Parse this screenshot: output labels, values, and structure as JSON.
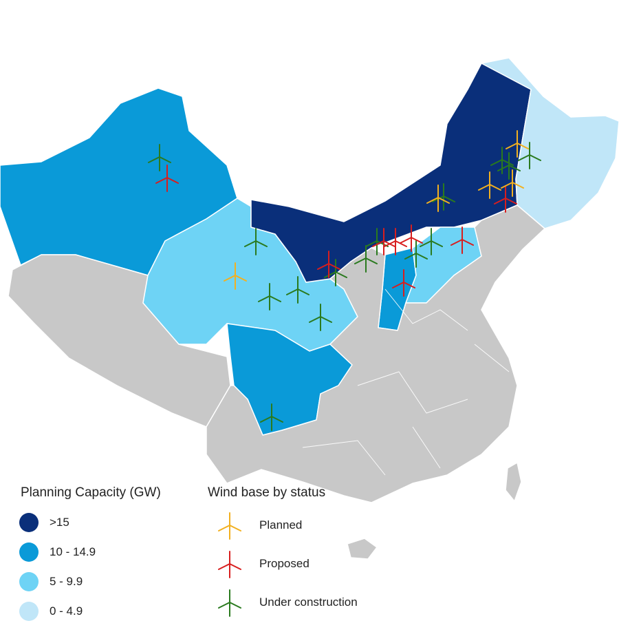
{
  "colors": {
    "gt15": "#0a2f7a",
    "10to14_9": "#0a9ad8",
    "5to9_9": "#6ed3f5",
    "0to4_9": "#c0e6f8",
    "no_data": "#c8c8c8",
    "planned": "#f2b020",
    "proposed": "#d81e1e",
    "under_construction": "#2a7a1e"
  },
  "legend_capacity": {
    "title": "Planning Capacity (GW)",
    "items": [
      {
        "label": ">15",
        "color": "#0a2f7a"
      },
      {
        "label": "10 - 14.9",
        "color": "#0a9ad8"
      },
      {
        "label": "5 - 9.9",
        "color": "#6ed3f5"
      },
      {
        "label": "0 - 4.9",
        "color": "#c0e6f8"
      }
    ]
  },
  "legend_status": {
    "title": "Wind base by status",
    "items": [
      {
        "label": "Planned",
        "status": "planned",
        "icon": "wind-turbine-icon"
      },
      {
        "label": "Proposed",
        "status": "proposed",
        "icon": "wind-turbine-icon"
      },
      {
        "label": "Under construction",
        "status": "under_construction",
        "icon": "wind-turbine-icon"
      }
    ]
  },
  "regions": [
    {
      "name": "xinjiang",
      "class": "10to14_9"
    },
    {
      "name": "tibet",
      "class": "no_data"
    },
    {
      "name": "qinghai-gansu-ningxia",
      "class": "5to9_9"
    },
    {
      "name": "inner-mongolia",
      "class": "gt15"
    },
    {
      "name": "northeast",
      "class": "0to4_9"
    },
    {
      "name": "shanxi",
      "class": "10to14_9"
    },
    {
      "name": "hebei",
      "class": "5to9_9"
    },
    {
      "name": "sichuan",
      "class": "10to14_9"
    },
    {
      "name": "east-south",
      "class": "no_data"
    }
  ]
}
